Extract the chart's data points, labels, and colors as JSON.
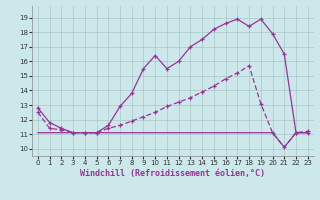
{
  "xlabel": "Windchill (Refroidissement éolien,°C)",
  "background_color": "#cce8ea",
  "line_color": "#993399",
  "xlim": [
    -0.5,
    23.5
  ],
  "ylim": [
    9.5,
    19.8
  ],
  "yticks": [
    10,
    11,
    12,
    13,
    14,
    15,
    16,
    17,
    18,
    19
  ],
  "xticks": [
    0,
    1,
    2,
    3,
    4,
    5,
    6,
    7,
    8,
    9,
    10,
    11,
    12,
    13,
    14,
    15,
    16,
    17,
    18,
    19,
    20,
    21,
    22,
    23
  ],
  "line1_x": [
    0,
    1,
    2,
    3,
    4,
    5,
    6,
    7,
    8,
    9,
    10,
    11,
    12,
    13,
    14,
    15,
    16,
    17,
    18,
    19,
    20,
    21,
    22,
    23
  ],
  "line1_y": [
    12.8,
    11.8,
    11.4,
    11.1,
    11.1,
    11.1,
    11.6,
    12.9,
    13.8,
    15.5,
    16.4,
    15.5,
    16.0,
    17.0,
    17.5,
    18.2,
    18.6,
    18.9,
    18.4,
    18.9,
    17.9,
    16.5,
    11.1,
    11.1
  ],
  "line2_x": [
    0,
    1,
    2,
    3,
    4,
    5,
    6,
    7,
    8,
    9,
    10,
    11,
    12,
    13,
    14,
    15,
    16,
    17,
    18,
    19,
    20,
    21,
    22,
    23
  ],
  "line2_y": [
    12.5,
    11.4,
    11.3,
    11.1,
    11.1,
    11.1,
    11.4,
    11.6,
    11.9,
    12.2,
    12.5,
    12.9,
    13.2,
    13.5,
    13.9,
    14.3,
    14.8,
    15.2,
    15.7,
    13.1,
    11.1,
    10.1,
    11.1,
    11.2
  ],
  "line3_x": [
    0,
    1,
    2,
    3,
    4,
    5,
    6,
    7,
    8,
    9,
    10,
    11,
    12,
    13,
    14,
    15,
    16,
    17,
    18,
    19,
    20,
    21,
    22,
    23
  ],
  "line3_y": [
    11.1,
    11.1,
    11.1,
    11.1,
    11.1,
    11.1,
    11.1,
    11.1,
    11.1,
    11.1,
    11.1,
    11.1,
    11.1,
    11.1,
    11.1,
    11.1,
    11.1,
    11.1,
    11.1,
    11.1,
    11.1,
    10.1,
    11.1,
    11.1
  ],
  "grid_color": "#aac8c8",
  "xlabel_fontsize": 6,
  "tick_fontsize": 5
}
